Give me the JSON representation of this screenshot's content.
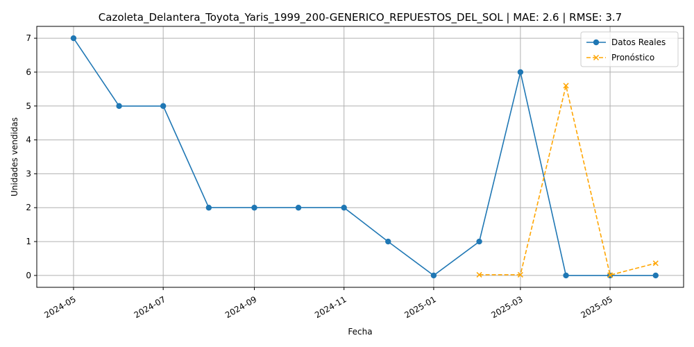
{
  "chart_data": {
    "type": "line",
    "title": "Cazoleta_Delantera_Toyota_Yaris_1999_200-GENERICO_REPUESTOS_DEL_SOL | MAE: 2.6 | RMSE: 3.7",
    "xlabel": "Fecha",
    "ylabel": "Unidades vendidas",
    "ylim": [
      -0.35,
      7.35
    ],
    "xlim": [
      "2024-04-06",
      "2025-06-20"
    ],
    "x_ticks": [
      "2024-05",
      "2024-07",
      "2024-09",
      "2024-11",
      "2025-01",
      "2025-03",
      "2025-05"
    ],
    "x_tick_dates": [
      "2024-05-01",
      "2024-07-01",
      "2024-09-01",
      "2024-11-01",
      "2025-01-01",
      "2025-03-01",
      "2025-05-01"
    ],
    "y_ticks": [
      "0",
      "1",
      "2",
      "3",
      "4",
      "5",
      "6",
      "7"
    ],
    "grid": true,
    "legend_position": "top-right",
    "series": [
      {
        "name": "Datos Reales",
        "color": "#1f77b4",
        "style": "solid",
        "marker": "circle",
        "x": [
          "2024-05-01",
          "2024-06-01",
          "2024-07-01",
          "2024-08-01",
          "2024-09-01",
          "2024-10-01",
          "2024-11-01",
          "2024-12-01",
          "2025-01-01",
          "2025-02-01",
          "2025-03-01",
          "2025-04-01",
          "2025-05-01",
          "2025-06-01"
        ],
        "y": [
          7,
          5,
          5,
          2,
          2,
          2,
          2,
          1,
          0,
          1,
          6,
          0,
          0,
          0
        ]
      },
      {
        "name": "Pronóstico",
        "color": "#ffa500",
        "style": "dashed",
        "marker": "x",
        "x": [
          "2025-02-01",
          "2025-03-01",
          "2025-04-01",
          "2025-05-01",
          "2025-06-01"
        ],
        "y": [
          0.02,
          0.02,
          5.6,
          0.01,
          0.36
        ]
      }
    ]
  }
}
